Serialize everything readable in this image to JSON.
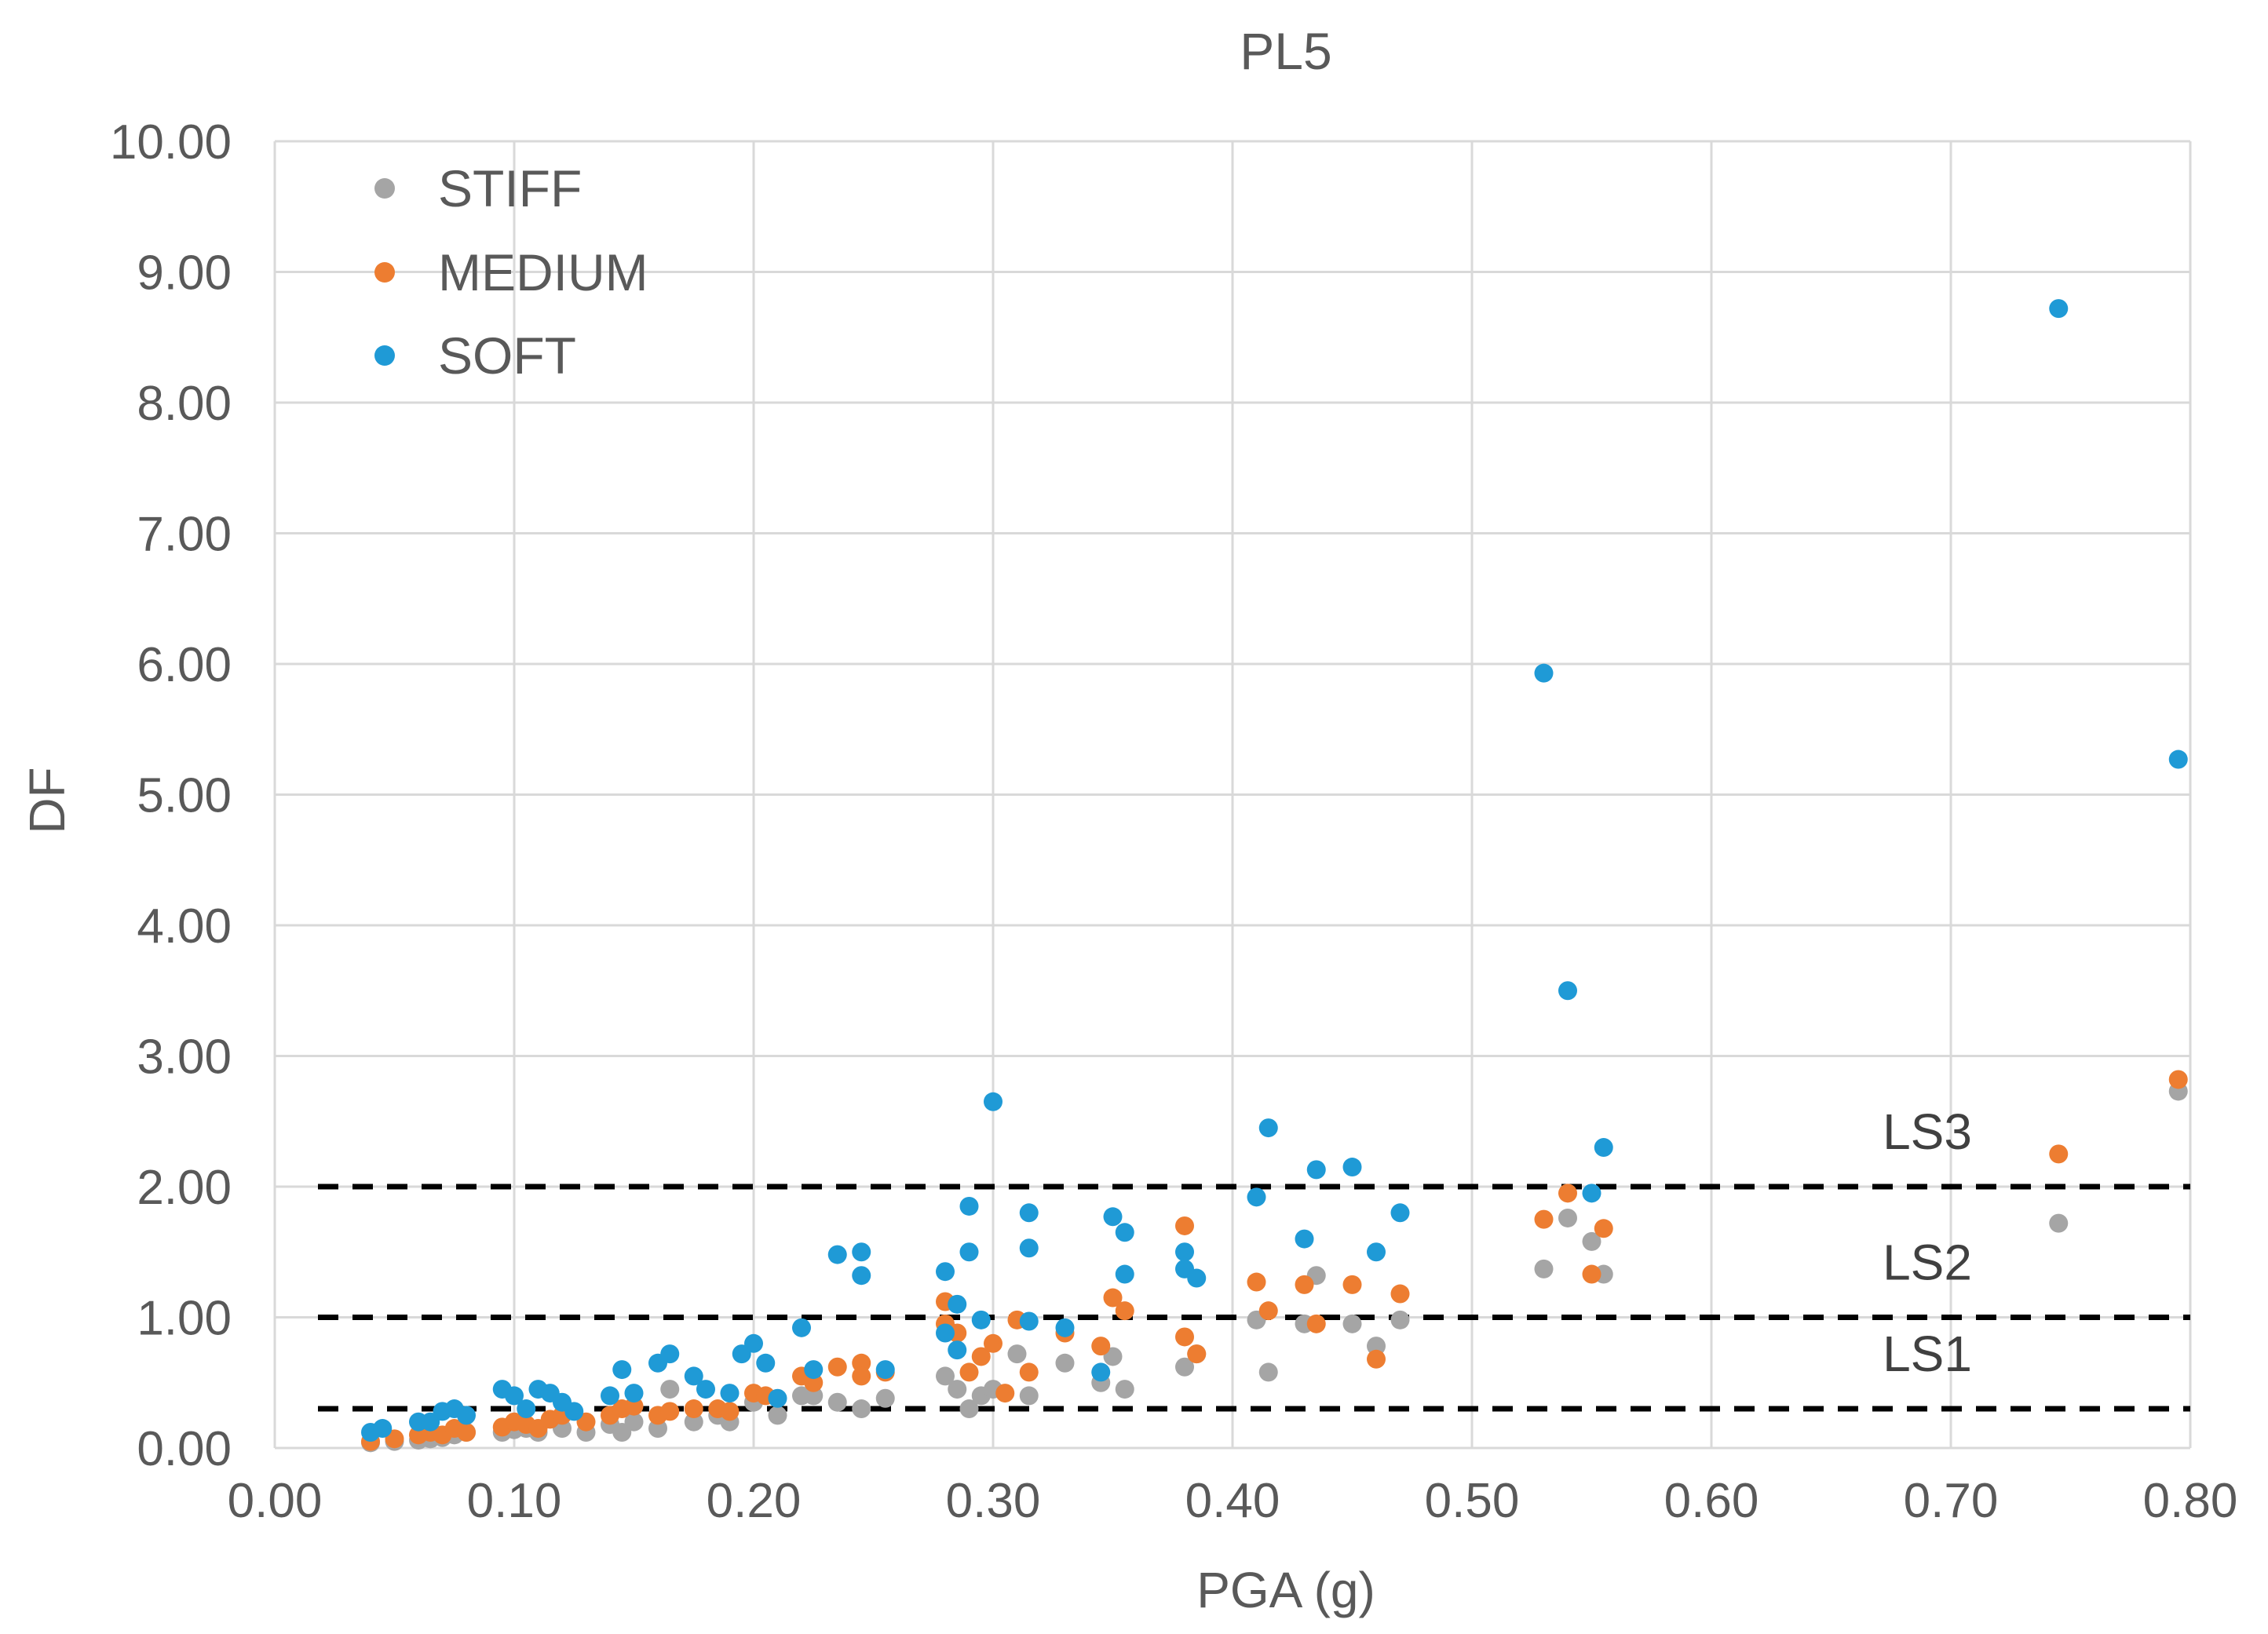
{
  "chart_data": {
    "type": "scatter",
    "title": "PL5",
    "xlabel": "PGA (g)",
    "ylabel": "DF",
    "xlim": [
      0,
      0.8
    ],
    "ylim": [
      0,
      10
    ],
    "x_ticks": [
      "0.00",
      "0.10",
      "0.20",
      "0.30",
      "0.40",
      "0.50",
      "0.60",
      "0.70",
      "0.80"
    ],
    "y_ticks": [
      "0.00",
      "1.00",
      "2.00",
      "3.00",
      "4.00",
      "5.00",
      "6.00",
      "7.00",
      "8.00",
      "9.00",
      "10.00"
    ],
    "grid": true,
    "legend_position": "top-left",
    "thresholds": [
      {
        "label": "LS1",
        "y": 0.3
      },
      {
        "label": "LS2",
        "y": 1.0
      },
      {
        "label": "LS3",
        "y": 2.0
      }
    ],
    "series": [
      {
        "name": "STIFF",
        "color": "#a5a5a5",
        "points": [
          [
            0.04,
            0.04
          ],
          [
            0.05,
            0.05
          ],
          [
            0.06,
            0.06
          ],
          [
            0.065,
            0.07
          ],
          [
            0.07,
            0.08
          ],
          [
            0.075,
            0.1
          ],
          [
            0.08,
            0.12
          ],
          [
            0.095,
            0.12
          ],
          [
            0.1,
            0.14
          ],
          [
            0.105,
            0.15
          ],
          [
            0.11,
            0.12
          ],
          [
            0.12,
            0.15
          ],
          [
            0.13,
            0.12
          ],
          [
            0.14,
            0.18
          ],
          [
            0.145,
            0.12
          ],
          [
            0.15,
            0.2
          ],
          [
            0.16,
            0.15
          ],
          [
            0.165,
            0.45
          ],
          [
            0.175,
            0.2
          ],
          [
            0.185,
            0.25
          ],
          [
            0.19,
            0.2
          ],
          [
            0.2,
            0.35
          ],
          [
            0.21,
            0.25
          ],
          [
            0.22,
            0.4
          ],
          [
            0.225,
            0.4
          ],
          [
            0.235,
            0.35
          ],
          [
            0.245,
            0.3
          ],
          [
            0.255,
            0.38
          ],
          [
            0.28,
            0.55
          ],
          [
            0.285,
            0.45
          ],
          [
            0.29,
            0.3
          ],
          [
            0.295,
            0.4
          ],
          [
            0.3,
            0.45
          ],
          [
            0.31,
            0.72
          ],
          [
            0.315,
            0.4
          ],
          [
            0.33,
            0.65
          ],
          [
            0.345,
            0.5
          ],
          [
            0.35,
            0.7
          ],
          [
            0.355,
            0.45
          ],
          [
            0.38,
            0.62
          ],
          [
            0.385,
            0.72
          ],
          [
            0.41,
            0.98
          ],
          [
            0.415,
            0.58
          ],
          [
            0.43,
            0.95
          ],
          [
            0.435,
            1.32
          ],
          [
            0.45,
            0.95
          ],
          [
            0.46,
            0.78
          ],
          [
            0.47,
            0.98
          ],
          [
            0.53,
            1.37
          ],
          [
            0.54,
            1.76
          ],
          [
            0.55,
            1.58
          ],
          [
            0.555,
            1.33
          ],
          [
            0.745,
            1.72
          ],
          [
            0.795,
            2.73
          ]
        ]
      },
      {
        "name": "MEDIUM",
        "color": "#ed7d31",
        "points": [
          [
            0.04,
            0.05
          ],
          [
            0.05,
            0.07
          ],
          [
            0.06,
            0.1
          ],
          [
            0.065,
            0.12
          ],
          [
            0.07,
            0.1
          ],
          [
            0.075,
            0.15
          ],
          [
            0.08,
            0.12
          ],
          [
            0.095,
            0.16
          ],
          [
            0.1,
            0.2
          ],
          [
            0.105,
            0.18
          ],
          [
            0.11,
            0.15
          ],
          [
            0.115,
            0.22
          ],
          [
            0.12,
            0.25
          ],
          [
            0.13,
            0.2
          ],
          [
            0.14,
            0.25
          ],
          [
            0.145,
            0.3
          ],
          [
            0.15,
            0.32
          ],
          [
            0.16,
            0.25
          ],
          [
            0.165,
            0.28
          ],
          [
            0.175,
            0.3
          ],
          [
            0.185,
            0.3
          ],
          [
            0.19,
            0.28
          ],
          [
            0.2,
            0.42
          ],
          [
            0.205,
            0.4
          ],
          [
            0.22,
            0.55
          ],
          [
            0.225,
            0.5
          ],
          [
            0.235,
            0.62
          ],
          [
            0.245,
            0.65
          ],
          [
            0.245,
            0.55
          ],
          [
            0.255,
            0.58
          ],
          [
            0.28,
            1.12
          ],
          [
            0.28,
            0.95
          ],
          [
            0.285,
            0.88
          ],
          [
            0.29,
            0.58
          ],
          [
            0.295,
            0.7
          ],
          [
            0.3,
            0.8
          ],
          [
            0.305,
            0.42
          ],
          [
            0.31,
            0.98
          ],
          [
            0.315,
            0.58
          ],
          [
            0.33,
            0.88
          ],
          [
            0.345,
            0.78
          ],
          [
            0.35,
            1.15
          ],
          [
            0.355,
            1.05
          ],
          [
            0.38,
            1.7
          ],
          [
            0.38,
            0.85
          ],
          [
            0.385,
            0.72
          ],
          [
            0.41,
            1.27
          ],
          [
            0.415,
            1.05
          ],
          [
            0.43,
            1.25
          ],
          [
            0.435,
            0.95
          ],
          [
            0.45,
            1.25
          ],
          [
            0.46,
            0.68
          ],
          [
            0.47,
            1.18
          ],
          [
            0.53,
            1.75
          ],
          [
            0.54,
            1.95
          ],
          [
            0.55,
            1.33
          ],
          [
            0.555,
            1.68
          ],
          [
            0.745,
            2.25
          ],
          [
            0.795,
            2.82
          ]
        ]
      },
      {
        "name": "SOFT",
        "color": "#1f9ad6",
        "points": [
          [
            0.04,
            0.12
          ],
          [
            0.045,
            0.15
          ],
          [
            0.06,
            0.2
          ],
          [
            0.065,
            0.2
          ],
          [
            0.07,
            0.28
          ],
          [
            0.075,
            0.3
          ],
          [
            0.08,
            0.25
          ],
          [
            0.095,
            0.45
          ],
          [
            0.1,
            0.4
          ],
          [
            0.105,
            0.3
          ],
          [
            0.11,
            0.45
          ],
          [
            0.115,
            0.42
          ],
          [
            0.12,
            0.35
          ],
          [
            0.125,
            0.28
          ],
          [
            0.14,
            0.4
          ],
          [
            0.145,
            0.6
          ],
          [
            0.15,
            0.42
          ],
          [
            0.16,
            0.65
          ],
          [
            0.165,
            0.72
          ],
          [
            0.175,
            0.55
          ],
          [
            0.18,
            0.45
          ],
          [
            0.19,
            0.42
          ],
          [
            0.195,
            0.72
          ],
          [
            0.2,
            0.8
          ],
          [
            0.205,
            0.65
          ],
          [
            0.21,
            0.38
          ],
          [
            0.22,
            0.92
          ],
          [
            0.225,
            0.6
          ],
          [
            0.235,
            1.48
          ],
          [
            0.245,
            1.5
          ],
          [
            0.245,
            1.32
          ],
          [
            0.255,
            0.6
          ],
          [
            0.28,
            1.35
          ],
          [
            0.28,
            0.88
          ],
          [
            0.285,
            1.1
          ],
          [
            0.285,
            0.75
          ],
          [
            0.29,
            1.85
          ],
          [
            0.29,
            1.5
          ],
          [
            0.295,
            0.98
          ],
          [
            0.3,
            2.65
          ],
          [
            0.315,
            1.8
          ],
          [
            0.315,
            1.53
          ],
          [
            0.315,
            0.97
          ],
          [
            0.33,
            0.92
          ],
          [
            0.345,
            0.58
          ],
          [
            0.35,
            1.77
          ],
          [
            0.355,
            1.65
          ],
          [
            0.355,
            1.33
          ],
          [
            0.38,
            1.5
          ],
          [
            0.38,
            1.37
          ],
          [
            0.385,
            1.3
          ],
          [
            0.41,
            1.92
          ],
          [
            0.415,
            2.45
          ],
          [
            0.43,
            1.6
          ],
          [
            0.435,
            2.13
          ],
          [
            0.45,
            2.15
          ],
          [
            0.46,
            1.5
          ],
          [
            0.47,
            1.8
          ],
          [
            0.53,
            5.93
          ],
          [
            0.54,
            3.5
          ],
          [
            0.55,
            1.95
          ],
          [
            0.555,
            2.3
          ],
          [
            0.745,
            8.72
          ],
          [
            0.795,
            5.27
          ]
        ]
      }
    ]
  }
}
